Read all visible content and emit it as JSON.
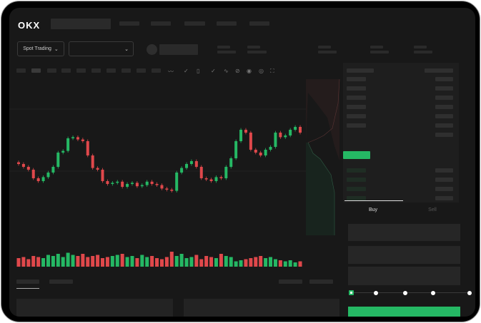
{
  "brand": {
    "logo": "OKX"
  },
  "toolbar": {
    "market_type": "Spot Trading",
    "pair_select": ""
  },
  "order_panel": {
    "tabs": [
      {
        "label": "Buy",
        "active": true
      },
      {
        "label": "Sell",
        "active": false
      }
    ],
    "slider_value_percent": 0
  },
  "colors": {
    "up": "#25b864",
    "down": "#e0484b",
    "background": "#181818"
  },
  "icons": [
    "chevron-down-icon",
    "indicator-icon",
    "draw-line-icon",
    "ruler-icon",
    "camera-icon",
    "settings-icon",
    "fullscreen-icon",
    "orderbook-both-icon",
    "orderbook-bids-icon",
    "orderbook-asks-icon"
  ],
  "chart_data": {
    "type": "candlestick",
    "close": [
      95,
      90,
      85,
      70,
      65,
      72,
      80,
      90,
      115,
      118,
      140,
      142,
      138,
      135,
      110,
      88,
      85,
      65,
      60,
      62,
      64,
      55,
      60,
      62,
      56,
      58,
      64,
      60,
      58,
      52,
      50,
      48,
      80,
      88,
      95,
      100,
      90,
      70,
      68,
      65,
      72,
      70,
      90,
      105,
      135,
      155,
      150,
      120,
      115,
      110,
      120,
      125,
      150,
      142,
      145,
      155,
      160,
      150
    ],
    "volume": [
      8,
      9,
      7,
      10,
      9,
      8,
      11,
      10,
      12,
      9,
      13,
      11,
      10,
      12,
      9,
      10,
      11,
      8,
      9,
      10,
      11,
      12,
      9,
      10,
      8,
      11,
      9,
      10,
      8,
      7,
      9,
      14,
      10,
      12,
      8,
      9,
      11,
      7,
      10,
      9,
      8,
      12,
      10,
      9,
      5,
      6,
      7,
      8,
      9,
      10,
      8,
      9,
      7,
      6,
      5,
      6,
      4,
      5
    ]
  }
}
